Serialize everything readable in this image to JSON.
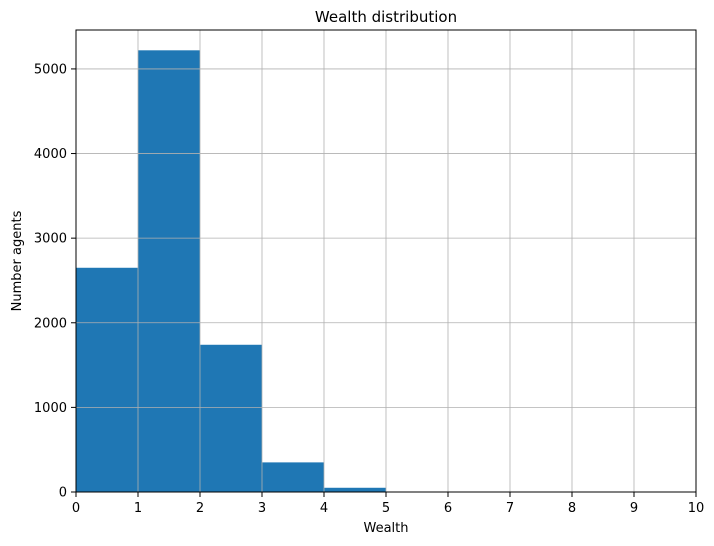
{
  "chart_data": {
    "type": "bar",
    "title": "Wealth distribution",
    "xlabel": "Wealth",
    "ylabel": "Number agents",
    "bins": [
      {
        "x0": 0,
        "x1": 1,
        "count": 2650
      },
      {
        "x0": 1,
        "x1": 2,
        "count": 5220
      },
      {
        "x0": 2,
        "x1": 3,
        "count": 1740
      },
      {
        "x0": 3,
        "x1": 4,
        "count": 350
      },
      {
        "x0": 4,
        "x1": 5,
        "count": 50
      },
      {
        "x0": 5,
        "x1": 6,
        "count": 5
      },
      {
        "x0": 6,
        "x1": 7,
        "count": 0
      },
      {
        "x0": 7,
        "x1": 8,
        "count": 0
      },
      {
        "x0": 8,
        "x1": 9,
        "count": 0
      },
      {
        "x0": 9,
        "x1": 10,
        "count": 0
      }
    ],
    "xlim": [
      0,
      10
    ],
    "ylim": [
      0,
      5460
    ],
    "xticks": [
      0,
      1,
      2,
      3,
      4,
      5,
      6,
      7,
      8,
      9,
      10
    ],
    "yticks": [
      0,
      1000,
      2000,
      3000,
      4000,
      5000
    ],
    "xtick_labels": [
      "0",
      "1",
      "2",
      "3",
      "4",
      "5",
      "6",
      "7",
      "8",
      "9",
      "10"
    ],
    "ytick_labels": [
      "0",
      "1000",
      "2000",
      "3000",
      "4000",
      "5000"
    ],
    "grid": true,
    "colors": {
      "bar": "#1f77b4",
      "grid": "#b0b0b0",
      "axis": "#000000"
    }
  }
}
